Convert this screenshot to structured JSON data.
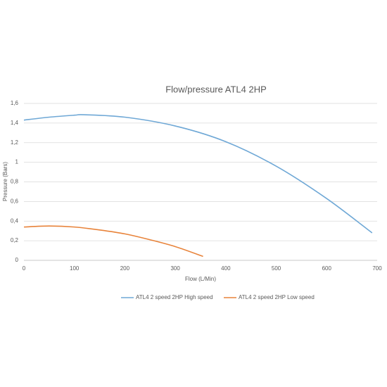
{
  "chart_data": {
    "type": "line",
    "title": "Flow/pressure ATL4 2HP",
    "x_label": "Flow (L/Min)",
    "y_label": "Pressure (Bars)",
    "series": [
      {
        "name": "ATL4 2 speed 2HP High speed",
        "color": "#6fa8d6",
        "x": [
          0,
          50,
          100,
          120,
          200,
          300,
          400,
          500,
          600,
          690
        ],
        "values": [
          1.43,
          1.46,
          1.48,
          1.485,
          1.46,
          1.37,
          1.21,
          0.96,
          0.63,
          0.28
        ]
      },
      {
        "name": "ATL4 2 speed 2HP Low speed",
        "color": "#e8833a",
        "x": [
          0,
          50,
          100,
          150,
          200,
          250,
          300,
          355
        ],
        "values": [
          0.34,
          0.35,
          0.34,
          0.31,
          0.27,
          0.21,
          0.14,
          0.04
        ]
      }
    ],
    "xlim": [
      0,
      700
    ],
    "xticks": [
      0,
      100,
      200,
      300,
      400,
      500,
      600,
      700
    ],
    "ylim": [
      0,
      1.6
    ],
    "yticks": [
      0,
      {
        "value": 0.2,
        "label": "0,2"
      },
      {
        "value": 0.4,
        "label": "0,4"
      },
      {
        "value": 0.6,
        "label": "0,6"
      },
      {
        "value": 0.8,
        "label": "0,8"
      },
      1,
      {
        "value": 1.2,
        "label": "1,2"
      },
      {
        "value": 1.4,
        "label": "1,4"
      },
      {
        "value": 1.6,
        "label": "1,6"
      }
    ],
    "grid": true
  }
}
